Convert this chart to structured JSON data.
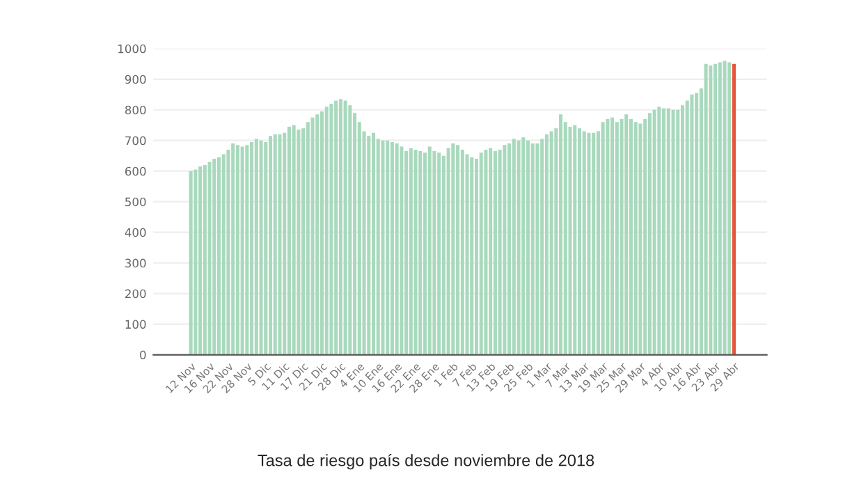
{
  "chart_data": {
    "type": "bar",
    "categories": [
      "12 Nov",
      null,
      null,
      null,
      "16 Nov",
      null,
      null,
      null,
      "22 Nov",
      null,
      null,
      null,
      "28 Nov",
      null,
      null,
      null,
      "5 Dic",
      null,
      null,
      null,
      "11 Dic",
      null,
      null,
      null,
      "17 Dic",
      null,
      null,
      null,
      "21 Dic",
      null,
      null,
      null,
      "28 Dic",
      null,
      null,
      null,
      "4 Ene",
      null,
      null,
      null,
      "10 Ene",
      null,
      null,
      null,
      "16 Ene",
      null,
      null,
      null,
      "22 Ene",
      null,
      null,
      null,
      "28 Ene",
      null,
      null,
      null,
      "1 Feb",
      null,
      null,
      null,
      "7 Feb",
      null,
      null,
      null,
      "13 Feb",
      null,
      null,
      null,
      "19 Feb",
      null,
      null,
      null,
      "25 Feb",
      null,
      null,
      null,
      "1 Mar",
      null,
      null,
      null,
      "7 Mar",
      null,
      null,
      null,
      "13 Mar",
      null,
      null,
      null,
      "19 Mar",
      null,
      null,
      null,
      "25 Mar",
      null,
      null,
      null,
      "29 Mar",
      null,
      null,
      null,
      "4 Abr",
      null,
      null,
      null,
      "10 Abr",
      null,
      null,
      null,
      "16 Abr",
      null,
      null,
      null,
      "23 Abr",
      null,
      null,
      null,
      "29 Abr"
    ],
    "values": [
      600,
      605,
      615,
      620,
      630,
      640,
      645,
      655,
      670,
      690,
      685,
      680,
      685,
      695,
      705,
      700,
      695,
      715,
      720,
      720,
      725,
      745,
      750,
      735,
      740,
      760,
      775,
      785,
      795,
      810,
      820,
      830,
      835,
      830,
      815,
      790,
      760,
      730,
      715,
      725,
      705,
      700,
      700,
      695,
      690,
      680,
      665,
      675,
      670,
      665,
      660,
      680,
      665,
      660,
      650,
      675,
      690,
      685,
      670,
      655,
      645,
      640,
      660,
      670,
      675,
      665,
      670,
      685,
      690,
      705,
      700,
      710,
      700,
      690,
      690,
      705,
      720,
      730,
      740,
      785,
      760,
      745,
      750,
      740,
      730,
      725,
      725,
      730,
      760,
      770,
      775,
      760,
      770,
      785,
      770,
      760,
      755,
      770,
      790,
      800,
      810,
      805,
      805,
      800,
      800,
      815,
      830,
      850,
      855,
      870,
      950,
      945,
      950,
      955,
      960,
      955,
      950
    ],
    "colors": [
      "#a9d9bd",
      "#a9d9bd",
      "#a9d9bd",
      "#a9d9bd",
      "#a9d9bd",
      "#a9d9bd",
      "#a9d9bd",
      "#a9d9bd",
      "#a9d9bd",
      "#a9d9bd",
      "#a9d9bd",
      "#a9d9bd",
      "#a9d9bd",
      "#a9d9bd",
      "#a9d9bd",
      "#a9d9bd",
      "#a9d9bd",
      "#a9d9bd",
      "#a9d9bd",
      "#a9d9bd",
      "#a9d9bd",
      "#a9d9bd",
      "#a9d9bd",
      "#a9d9bd",
      "#a9d9bd",
      "#a9d9bd",
      "#a9d9bd",
      "#a9d9bd",
      "#a9d9bd",
      "#a9d9bd",
      "#a9d9bd",
      "#a9d9bd",
      "#a9d9bd",
      "#a9d9bd",
      "#a9d9bd",
      "#a9d9bd",
      "#a9d9bd",
      "#a9d9bd",
      "#a9d9bd",
      "#a9d9bd",
      "#a9d9bd",
      "#a9d9bd",
      "#a9d9bd",
      "#a9d9bd",
      "#a9d9bd",
      "#a9d9bd",
      "#a9d9bd",
      "#a9d9bd",
      "#a9d9bd",
      "#a9d9bd",
      "#a9d9bd",
      "#a9d9bd",
      "#a9d9bd",
      "#a9d9bd",
      "#a9d9bd",
      "#a9d9bd",
      "#a9d9bd",
      "#a9d9bd",
      "#a9d9bd",
      "#a9d9bd",
      "#a9d9bd",
      "#a9d9bd",
      "#a9d9bd",
      "#a9d9bd",
      "#a9d9bd",
      "#a9d9bd",
      "#a9d9bd",
      "#a9d9bd",
      "#a9d9bd",
      "#a9d9bd",
      "#a9d9bd",
      "#a9d9bd",
      "#a9d9bd",
      "#a9d9bd",
      "#a9d9bd",
      "#a9d9bd",
      "#a9d9bd",
      "#a9d9bd",
      "#a9d9bd",
      "#a9d9bd",
      "#a9d9bd",
      "#a9d9bd",
      "#a9d9bd",
      "#a9d9bd",
      "#a9d9bd",
      "#a9d9bd",
      "#a9d9bd",
      "#a9d9bd",
      "#a9d9bd",
      "#a9d9bd",
      "#a9d9bd",
      "#a9d9bd",
      "#a9d9bd",
      "#a9d9bd",
      "#a9d9bd",
      "#a9d9bd",
      "#a9d9bd",
      "#a9d9bd",
      "#a9d9bd",
      "#a9d9bd",
      "#a9d9bd",
      "#a9d9bd",
      "#a9d9bd",
      "#a9d9bd",
      "#a9d9bd",
      "#a9d9bd",
      "#a9d9bd",
      "#a9d9bd",
      "#a9d9bd",
      "#a9d9bd",
      "#a9d9bd",
      "#a9d9bd",
      "#a9d9bd",
      "#a9d9bd",
      "#a9d9bd",
      "#a9d9bd",
      "#e8553a"
    ],
    "ylim": [
      0,
      1000
    ],
    "yticks": [
      0,
      100,
      200,
      300,
      400,
      500,
      600,
      700,
      800,
      900,
      1000
    ],
    "grid": "y",
    "annotations": [
      "Tasa de riesgo país desde noviembre de 2018"
    ]
  }
}
